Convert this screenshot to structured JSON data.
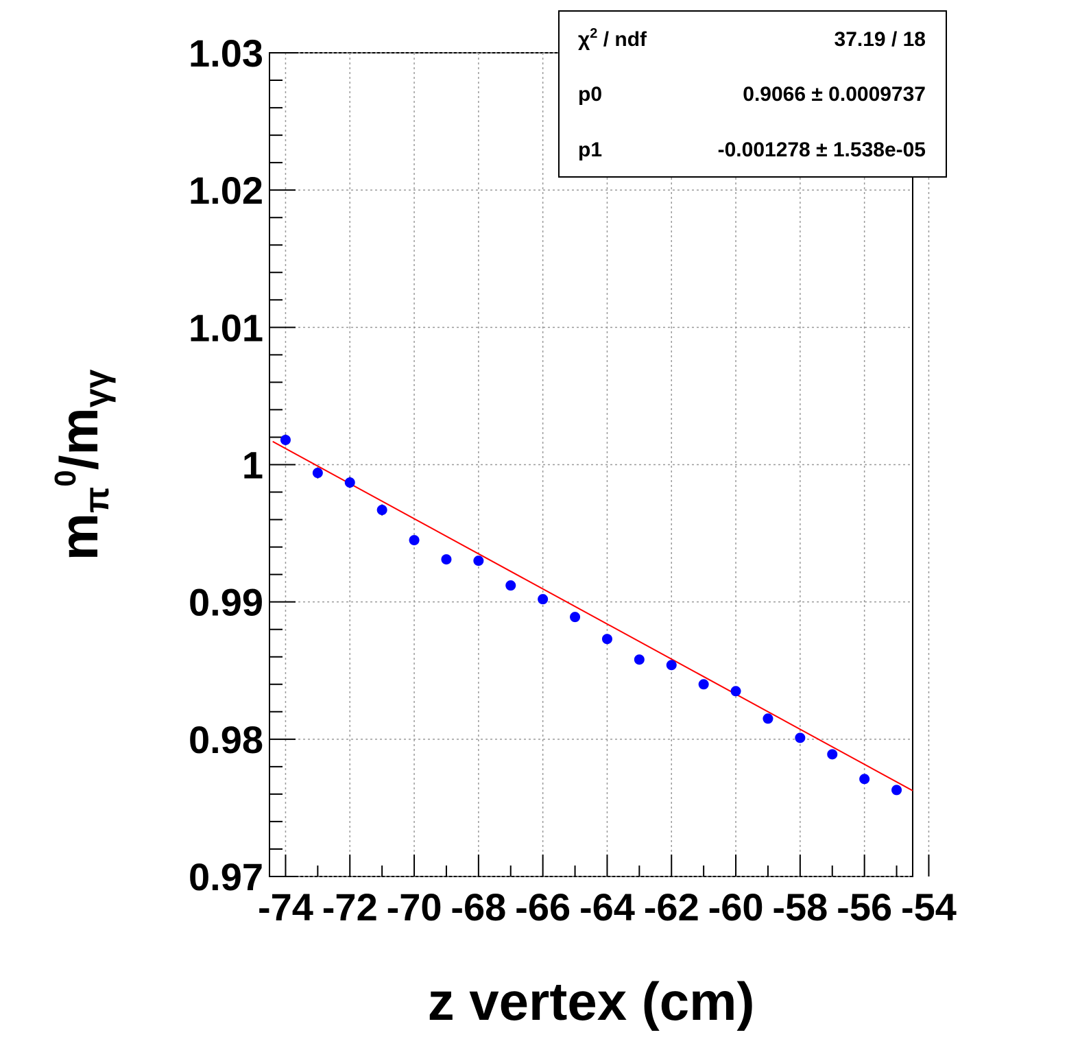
{
  "chart_data": {
    "type": "scatter",
    "xlabel": "z vertex (cm)",
    "ylabel": {
      "m1": "m",
      "sub1": "π",
      "sup1": "0",
      "slash": "/m",
      "sub2": "γγ"
    },
    "xlim": [
      -74.5,
      -54.5
    ],
    "ylim": [
      0.97,
      1.03
    ],
    "x_ticks": [
      -74,
      -72,
      -70,
      -68,
      -66,
      -64,
      -62,
      -60,
      -58,
      -56,
      -54
    ],
    "x_tick_labels": [
      "-74",
      "-72",
      "-70",
      "-68",
      "-66",
      "-64",
      "-62",
      "-60",
      "-58",
      "-56",
      "-54"
    ],
    "y_ticks": [
      0.97,
      0.98,
      0.99,
      1.0,
      1.01,
      1.02,
      1.03
    ],
    "y_tick_labels": [
      "0.97",
      "0.98",
      "0.99",
      "1",
      "1.01",
      "1.02",
      "1.03"
    ],
    "grid": true,
    "series": [
      {
        "marker_color": "#0000ff",
        "x": [
          -74,
          -73,
          -72,
          -71,
          -70,
          -69,
          -68,
          -67,
          -66,
          -65,
          -64,
          -63,
          -62,
          -61,
          -60,
          -59,
          -58,
          -57,
          -56,
          -55
        ],
        "y": [
          1.0018,
          0.9994,
          0.9987,
          0.9967,
          0.9945,
          0.9931,
          0.993,
          0.9912,
          0.9902,
          0.9889,
          0.9873,
          0.9858,
          0.9854,
          0.984,
          0.9835,
          0.9815,
          0.9801,
          0.9789,
          0.9771,
          0.9763
        ],
        "yerr": [
          0.0004,
          0.0004,
          0.0004,
          0.0004,
          0.00035,
          0.00035,
          0.0003,
          0.0003,
          0.0003,
          0.0003,
          0.0003,
          0.0003,
          0.0003,
          0.0003,
          0.0003,
          0.0003,
          0.0003,
          0.0003,
          0.0003,
          0.0003
        ]
      }
    ],
    "fit": {
      "color": "#ff0000",
      "p0": 0.9066,
      "p1": -0.001278,
      "x_range": [
        -74.4,
        -54.5
      ]
    },
    "stats_box": {
      "placement": "top-right",
      "rows": [
        {
          "label": "χ² / ndf",
          "value": "37.19 / 18"
        },
        {
          "label": "p0",
          "value": "0.9066 ± 0.0009737"
        },
        {
          "label": "p1",
          "value": "-0.001278 ± 1.538e-05"
        }
      ],
      "chi_symbol": "χ",
      "chi_sup": "2",
      "chi_rest": " / ndf"
    }
  }
}
